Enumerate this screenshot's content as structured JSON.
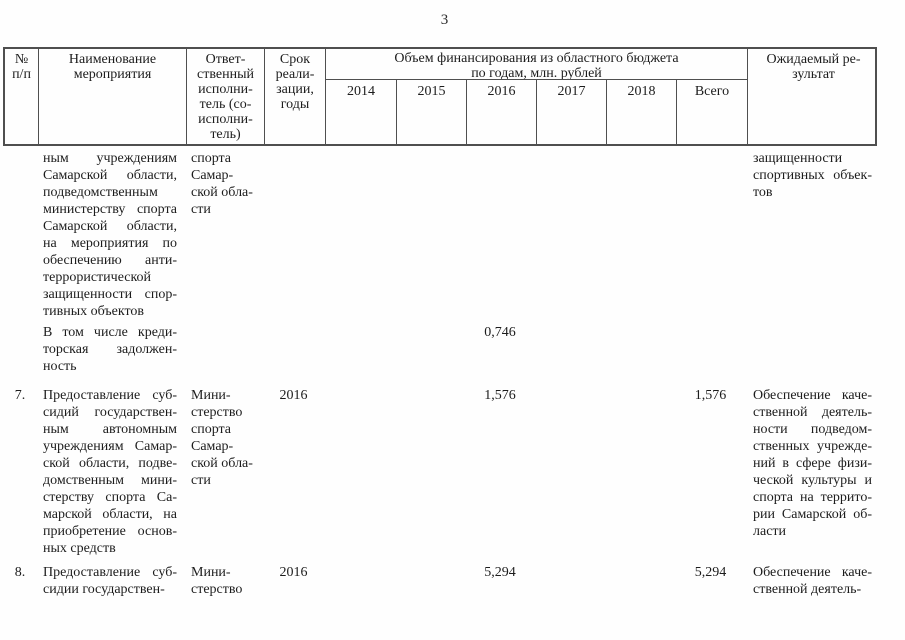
{
  "page_number": "3",
  "table": {
    "header": {
      "num": [
        "№",
        "п/п"
      ],
      "name": [
        "Наименование",
        "мероприятия"
      ],
      "executor": [
        "Ответ-",
        "ственный",
        "исполни-",
        "тель (со-",
        "исполни-",
        "тель)"
      ],
      "term": [
        "Срок",
        "реали-",
        "зации,",
        "годы"
      ],
      "finance_title": [
        "Объем финансирования из областного бюджета",
        "по годам, млн. рублей"
      ],
      "years": [
        "2014",
        "2015",
        "2016",
        "2017",
        "2018"
      ],
      "total_label": "Всего",
      "result": [
        "Ожидаемый ре-",
        "зультат"
      ]
    },
    "rows": [
      {
        "num": "",
        "name": [
          "ным учреждениям",
          "Самарской области,",
          "подведомственным",
          "министерству спорта",
          "Самарской области,",
          "на мероприятия по",
          "обеспечению анти-",
          "террористической",
          "защищенности спор-",
          "тивных объектов"
        ],
        "executor": [
          "спорта",
          "Самар-",
          "ской обла-",
          "сти"
        ],
        "term": "",
        "y2014": "",
        "y2015": "",
        "y2016": "",
        "y2017": "",
        "y2018": "",
        "total": "",
        "result": [
          "защищенности",
          "спортивных объек-",
          "тов"
        ]
      },
      {
        "num": "",
        "name": [
          "В том числе креди-",
          "торская задолжен-",
          "ность"
        ],
        "executor": [],
        "term": "",
        "y2014": "",
        "y2015": "",
        "y2016": "0,746",
        "y2017": "",
        "y2018": "",
        "total": "",
        "result": []
      },
      {
        "num": "7.",
        "name": [
          "Предоставление суб-",
          "сидий государствен-",
          "ным автономным",
          "учреждениям Самар-",
          "ской области, подве-",
          "домственным мини-",
          "стерству спорта Са-",
          "марской области, на",
          "приобретение основ-",
          "ных средств"
        ],
        "executor": [
          "Мини-",
          "стерство",
          "спорта",
          "Самар-",
          "ской обла-",
          "сти"
        ],
        "term": "2016",
        "y2014": "",
        "y2015": "",
        "y2016": "1,576",
        "y2017": "",
        "y2018": "",
        "total": "1,576",
        "result": [
          "Обеспечение каче-",
          "ственной деятель-",
          "ности подведом-",
          "ственных учрежде-",
          "ний в сфере физи-",
          "ческой культуры и",
          "спорта на террито-",
          "рии Самарской об-",
          "ласти"
        ]
      },
      {
        "num": "8.",
        "name": [
          "Предоставление суб-",
          "сидии государствен-"
        ],
        "executor": [
          "Мини-",
          "стерство"
        ],
        "term": "2016",
        "y2014": "",
        "y2015": "",
        "y2016": "5,294",
        "y2017": "",
        "y2018": "",
        "total": "5,294",
        "result": [
          "Обеспечение каче-",
          "ственной деятель-"
        ]
      }
    ]
  }
}
